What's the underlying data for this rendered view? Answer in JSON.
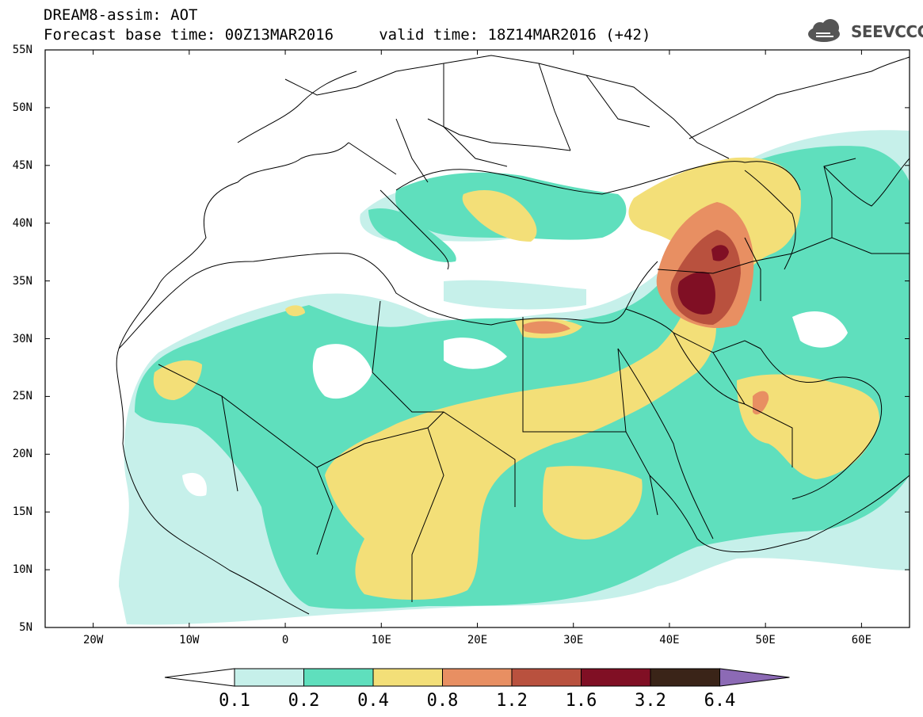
{
  "header": {
    "title_line1": "DREAM8-assim: AOT",
    "title_line2": "Forecast base time: 00Z13MAR2016     valid time: 18Z14MAR2016 (+42)",
    "logo_text": "SEEVCCC",
    "logo_icon": "cloud-icon"
  },
  "map": {
    "region": "North Africa and Middle East",
    "lat_range": [
      5,
      55
    ],
    "lon_range": [
      -25,
      65
    ],
    "lat_labels": [
      "55N",
      "50N",
      "45N",
      "40N",
      "35N",
      "30N",
      "25N",
      "20N",
      "15N",
      "10N",
      "5N"
    ],
    "lon_labels": [
      "20W",
      "10W",
      "0",
      "10E",
      "20E",
      "30E",
      "40E",
      "50E",
      "60E"
    ],
    "field": "Aerosol optical thickness (shaded)",
    "max_region": "Iraq / northern Syria, values above 3.2"
  },
  "colorbar": {
    "labels": [
      "0.1",
      "0.2",
      "0.4",
      "0.8",
      "1.2",
      "1.6",
      "3.2",
      "6.4"
    ],
    "colors": [
      "#c6f0ea",
      "#5fdfbd",
      "#f3df78",
      "#e88f62",
      "#b9513e",
      "#800f24",
      "#3a2418",
      "#8c6ab5"
    ]
  }
}
